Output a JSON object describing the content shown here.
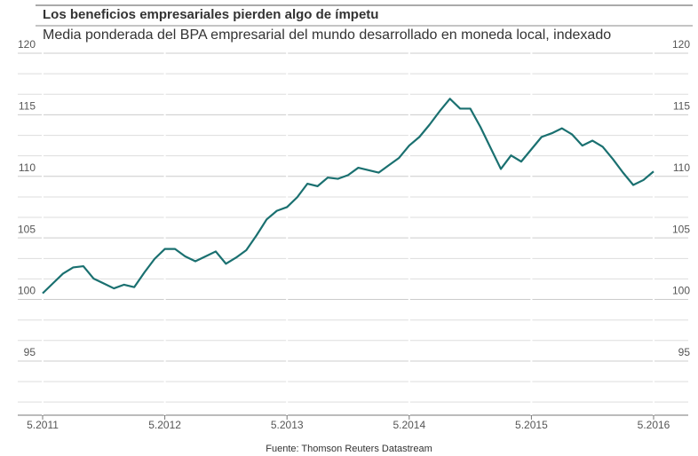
{
  "chart_data": {
    "type": "line",
    "title": "Los beneficios empresariales pierden algo de ímpetu",
    "subtitle": "Media ponderada del BPA empresarial del mundo desarrollado en moneda local, indexado",
    "source": "Fuente: Thomson Reuters Datastream",
    "categories": [
      "5.2011",
      null,
      null,
      null,
      null,
      null,
      null,
      null,
      null,
      null,
      null,
      null,
      "5.2012",
      null,
      null,
      null,
      null,
      null,
      null,
      null,
      null,
      null,
      null,
      null,
      "5.2013",
      null,
      null,
      null,
      null,
      null,
      null,
      null,
      null,
      null,
      null,
      null,
      "5.2014",
      null,
      null,
      null,
      null,
      null,
      null,
      null,
      null,
      null,
      null,
      null,
      "5.2015",
      null,
      null,
      null,
      null,
      null,
      null,
      null,
      null,
      null,
      null,
      null,
      "5.2016"
    ],
    "series": [
      {
        "color": "#1a7070",
        "values": [
          100.5,
          101.3,
          102.1,
          102.6,
          102.7,
          101.7,
          101.3,
          100.9,
          101.2,
          101.0,
          102.2,
          103.3,
          104.1,
          104.1,
          103.5,
          103.1,
          103.5,
          103.9,
          102.9,
          103.4,
          104.0,
          105.2,
          106.5,
          107.2,
          107.5,
          108.3,
          109.4,
          109.2,
          109.9,
          109.8,
          110.1,
          110.7,
          110.5,
          110.3,
          110.9,
          111.5,
          112.5,
          113.2,
          114.2,
          115.3,
          116.3,
          115.5,
          115.5,
          114.0,
          112.3,
          110.6,
          111.7,
          111.2,
          112.2,
          113.2,
          113.5,
          113.9,
          113.4,
          112.5,
          112.9,
          112.4,
          111.4,
          110.3,
          109.3,
          109.7,
          110.4
        ]
      }
    ],
    "ylim": [
      90.6,
      120
    ],
    "yticks": [
      95,
      100,
      105,
      110,
      115,
      120
    ],
    "minor_grid": [
      91.67,
      93.33,
      96.67,
      98.33,
      101.67,
      103.33,
      106.67,
      108.33,
      111.67,
      113.33,
      116.67,
      118.33
    ],
    "grid": true
  }
}
